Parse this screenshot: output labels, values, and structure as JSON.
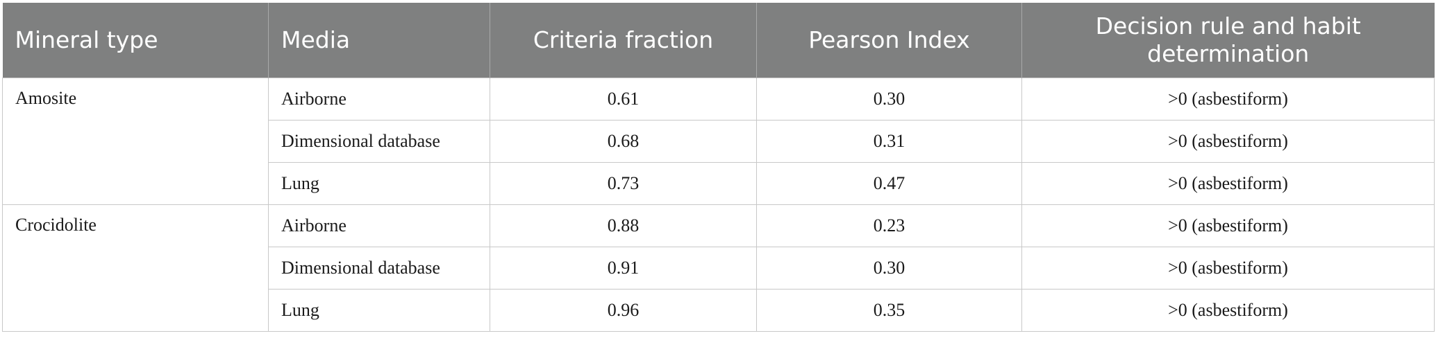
{
  "table": {
    "headers": [
      "Mineral type",
      "Media",
      "Criteria fraction",
      "Pearson Index",
      "Decision rule and habit determination"
    ],
    "groups": [
      {
        "mineral": "Amosite",
        "rows": [
          {
            "media": "Airborne",
            "criteria_fraction": "0.61",
            "pearson_index": "0.30",
            "decision": ">0 (asbestiform)"
          },
          {
            "media": "Dimensional database",
            "criteria_fraction": "0.68",
            "pearson_index": "0.31",
            "decision": ">0 (asbestiform)"
          },
          {
            "media": "Lung",
            "criteria_fraction": "0.73",
            "pearson_index": "0.47",
            "decision": ">0 (asbestiform)"
          }
        ]
      },
      {
        "mineral": "Crocidolite",
        "rows": [
          {
            "media": "Airborne",
            "criteria_fraction": "0.88",
            "pearson_index": "0.23",
            "decision": ">0 (asbestiform)"
          },
          {
            "media": "Dimensional database",
            "criteria_fraction": "0.91",
            "pearson_index": "0.30",
            "decision": ">0 (asbestiform)"
          },
          {
            "media": "Lung",
            "criteria_fraction": "0.96",
            "pearson_index": "0.35",
            "decision": ">0 (asbestiform)"
          }
        ]
      }
    ]
  }
}
